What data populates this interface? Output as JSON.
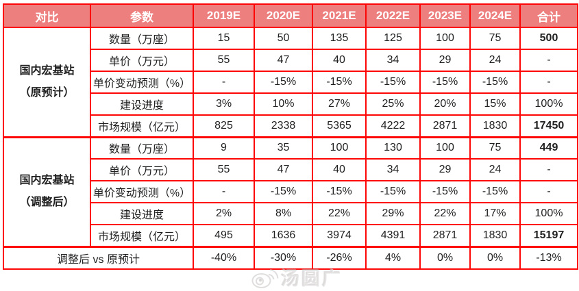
{
  "table": {
    "header": [
      "对比",
      "参数",
      "2019E",
      "2020E",
      "2021E",
      "2022E",
      "2023E",
      "2024E",
      "合计"
    ],
    "sections": [
      {
        "label_line1": "国内宏基站",
        "label_line2": "（原预计）",
        "rows": [
          {
            "param": "数量（万座）",
            "values": [
              "15",
              "50",
              "135",
              "125",
              "100",
              "75"
            ],
            "total": "500",
            "total_bold": true
          },
          {
            "param": "单价（万元）",
            "values": [
              "55",
              "47",
              "40",
              "34",
              "29",
              "24"
            ],
            "total": "-",
            "total_bold": false
          },
          {
            "param": "单价变动预测（%）",
            "values": [
              "-",
              "-15%",
              "-15%",
              "-15%",
              "-15%",
              "-15%"
            ],
            "total": "-",
            "total_bold": false
          },
          {
            "param": "建设进度",
            "values": [
              "3%",
              "10%",
              "27%",
              "25%",
              "20%",
              "15%"
            ],
            "total": "100%",
            "total_bold": false
          },
          {
            "param": "市场规模（亿元）",
            "values": [
              "825",
              "2338",
              "5365",
              "4222",
              "2871",
              "1830"
            ],
            "total": "17450",
            "total_bold": true
          }
        ]
      },
      {
        "label_line1": "国内宏基站",
        "label_line2": "（调整后）",
        "rows": [
          {
            "param": "数量（万座）",
            "values": [
              "9",
              "35",
              "100",
              "130",
              "100",
              "75"
            ],
            "total": "449",
            "total_bold": true
          },
          {
            "param": "单价（万元）",
            "values": [
              "55",
              "47",
              "40",
              "34",
              "29",
              "24"
            ],
            "total": "-",
            "total_bold": false
          },
          {
            "param": "单价变动预测（%）",
            "values": [
              "-",
              "-15%",
              "-15%",
              "-15%",
              "-15%",
              "-15%"
            ],
            "total": "-",
            "total_bold": false
          },
          {
            "param": "建设进度",
            "values": [
              "2%",
              "8%",
              "22%",
              "29%",
              "22%",
              "17%"
            ],
            "total": "100%",
            "total_bold": false
          },
          {
            "param": "市场规模（亿元）",
            "values": [
              "495",
              "1636",
              "3974",
              "4391",
              "2871",
              "1830"
            ],
            "total": "15197",
            "total_bold": true
          }
        ]
      }
    ],
    "footer": {
      "label": "调整后 vs 原预计",
      "values": [
        "-40%",
        "-30%",
        "-26%",
        "4%",
        "0%",
        "0%",
        "-13%"
      ]
    }
  },
  "watermark": {
    "icon": "weibo-icon",
    "text": "汤圆广"
  },
  "colors": {
    "border_red": "#fe0505",
    "header_bg": "#ee7f7f",
    "header_text": "#ffffff",
    "body_text": "#1f1f1f",
    "accent_red": "#fb2626"
  }
}
